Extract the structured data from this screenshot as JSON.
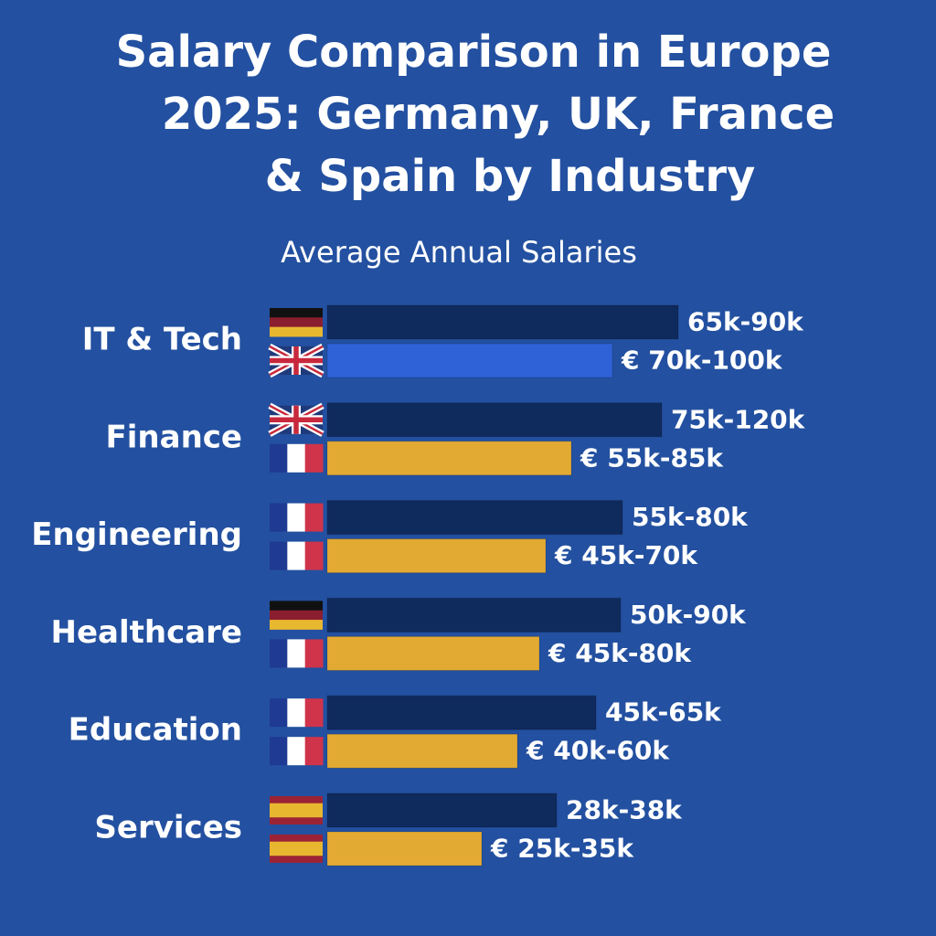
{
  "chart_data": {
    "type": "bar",
    "title": [
      "Salary Comparison in Europe",
      "2025: Germany, UK, France",
      "& Spain by Industry"
    ],
    "subtitle": "Average Annual Salaries",
    "groups": [
      {
        "category": "IT & Tech",
        "bars": [
          {
            "flag": "de",
            "color": "#0f2a5c",
            "label": "65k-90k"
          },
          {
            "flag": "uk",
            "color": "#2e62d6",
            "label": "€ 70k-100k"
          }
        ]
      },
      {
        "category": "Finance",
        "bars": [
          {
            "flag": "uk",
            "color": "#0f2a5c",
            "label": "75k-120k"
          },
          {
            "flag": "fr",
            "color": "#e3aa33",
            "label": "€ 55k-85k"
          }
        ]
      },
      {
        "category": "Engineering",
        "bars": [
          {
            "flag": "fr",
            "color": "#0f2a5c",
            "label": "55k-80k"
          },
          {
            "flag": "fr",
            "color": "#e3aa33",
            "label": "€ 45k-70k"
          }
        ]
      },
      {
        "category": "Healthcare",
        "bars": [
          {
            "flag": "de",
            "color": "#0f2a5c",
            "label": "50k-90k"
          },
          {
            "flag": "fr",
            "color": "#e3aa33",
            "label": "€ 45k-80k"
          }
        ]
      },
      {
        "category": "Education",
        "bars": [
          {
            "flag": "fr",
            "color": "#0f2a5c",
            "label": "45k-65k"
          },
          {
            "flag": "fr",
            "color": "#e3aa33",
            "label": "€ 40k-60k"
          }
        ]
      },
      {
        "category": "Services",
        "bars": [
          {
            "flag": "es",
            "color": "#0f2a5c",
            "label": "28k-38k"
          },
          {
            "flag": "es",
            "color": "#e3aa33",
            "label": "€ 25k-35k"
          }
        ]
      }
    ]
  }
}
